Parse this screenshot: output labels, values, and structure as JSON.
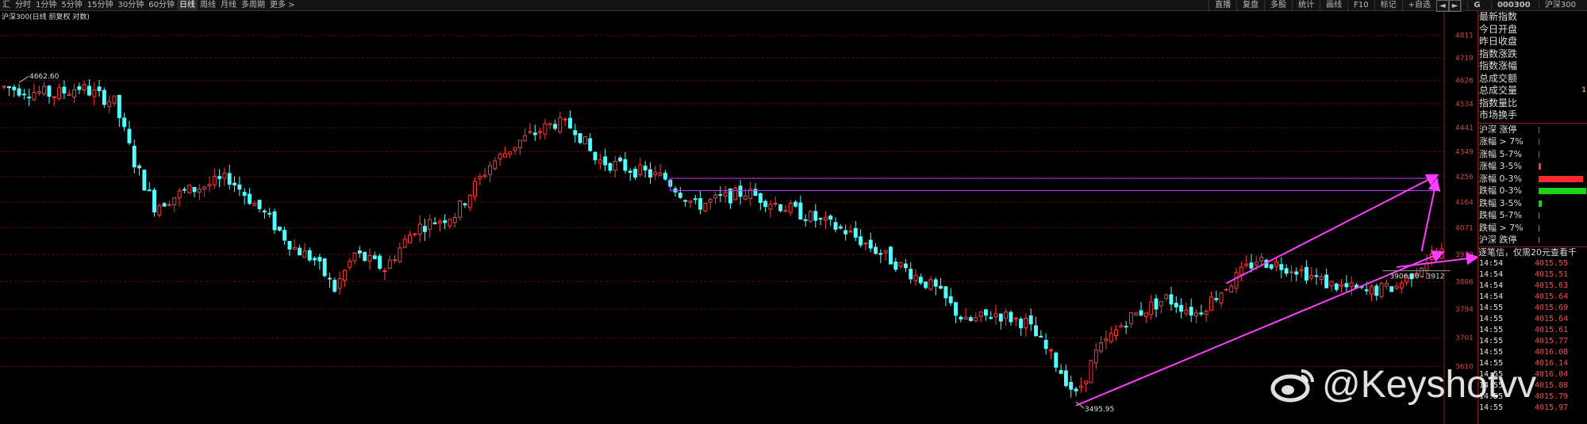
{
  "toolbar": {
    "periods": [
      "汇",
      "分时",
      "1分钟",
      "5分钟",
      "15分钟",
      "30分钟",
      "60分钟",
      "日线",
      "周线",
      "月线",
      "多周期",
      "更多 >"
    ],
    "active_period": "日线",
    "tools": [
      "直播",
      "复盘",
      "多股",
      "统计",
      "画线",
      "F10",
      "标记",
      "+自选"
    ],
    "nav_back": "◄",
    "nav_forward": "►"
  },
  "quote_header": {
    "prefix": "G",
    "code": "000300",
    "name": "沪深300"
  },
  "chart_title": "沪深300(日线 前复权 对数)",
  "chart_data": {
    "type": "candlestick",
    "scale": "log",
    "ylim": [
      3470,
      4900
    ],
    "y_ticks": [
      4811,
      4719,
      4626,
      4534,
      4441,
      4349,
      4256,
      4164,
      4071,
      3979,
      3886,
      3794,
      3701,
      3610
    ],
    "annotations": {
      "high_label": "4662.60",
      "low_label": "3495.95",
      "box_label": "3906.30 - 3912"
    },
    "colors": {
      "up": "#ff3b3b",
      "down": "#54ffff",
      "grid": "#5a1010",
      "axis_text": "#c94a4a",
      "drawing": "#ff3cff",
      "box": "#b044ff"
    },
    "anchors": [
      [
        0,
        4600
      ],
      [
        10,
        4570
      ],
      [
        15,
        4600
      ],
      [
        22,
        4540
      ],
      [
        26,
        4310
      ],
      [
        30,
        4150
      ],
      [
        36,
        4200
      ],
      [
        45,
        4250
      ],
      [
        52,
        4120
      ],
      [
        58,
        4000
      ],
      [
        62,
        3960
      ],
      [
        66,
        3860
      ],
      [
        70,
        3980
      ],
      [
        76,
        3930
      ],
      [
        82,
        4070
      ],
      [
        90,
        4120
      ],
      [
        97,
        4300
      ],
      [
        103,
        4390
      ],
      [
        110,
        4460
      ],
      [
        114,
        4440
      ],
      [
        118,
        4320
      ],
      [
        126,
        4280
      ],
      [
        132,
        4250
      ],
      [
        138,
        4150
      ],
      [
        148,
        4200
      ],
      [
        158,
        4130
      ],
      [
        168,
        4060
      ],
      [
        178,
        3950
      ],
      [
        186,
        3860
      ],
      [
        192,
        3750
      ],
      [
        198,
        3780
      ],
      [
        204,
        3750
      ],
      [
        210,
        3620
      ],
      [
        214,
        3520
      ],
      [
        218,
        3650
      ],
      [
        224,
        3760
      ],
      [
        232,
        3830
      ],
      [
        238,
        3780
      ],
      [
        244,
        3870
      ],
      [
        250,
        3960
      ],
      [
        258,
        3930
      ],
      [
        264,
        3880
      ],
      [
        272,
        3850
      ],
      [
        278,
        3870
      ],
      [
        284,
        3960
      ],
      [
        287,
        3985
      ]
    ]
  },
  "side_panel": {
    "stats": [
      {
        "label": "最新指数",
        "value": ""
      },
      {
        "label": "今日开盘",
        "value": ""
      },
      {
        "label": "昨日收盘",
        "value": ""
      },
      {
        "label": "指数涨跌",
        "value": ""
      },
      {
        "label": "指数涨幅",
        "value": ""
      },
      {
        "label": "总成交额",
        "value": ""
      },
      {
        "label": "总成交量",
        "value": "1"
      },
      {
        "label": "指数量比",
        "value": ""
      },
      {
        "label": "市场换手",
        "value": ""
      }
    ],
    "breadth": [
      {
        "label": "沪深 涨停",
        "color": "#ff3b3b",
        "fraction": 0.0
      },
      {
        "label": "涨幅 > 7%",
        "color": "#ff3b3b",
        "fraction": 0.01
      },
      {
        "label": "涨幅 5-7%",
        "color": "#ff3b3b",
        "fraction": 0.01
      },
      {
        "label": "涨幅 3-5%",
        "color": "#ff3b3b",
        "fraction": 0.05
      },
      {
        "label": "涨幅 0-3%",
        "color": "#ff2a2a",
        "fraction": 0.93
      },
      {
        "label": "跌幅 0-3%",
        "color": "#18d418",
        "fraction": 1.0
      },
      {
        "label": "跌幅 3-5%",
        "color": "#18d418",
        "fraction": 0.06
      },
      {
        "label": "跌幅 5-7%",
        "color": "#18d418",
        "fraction": 0.01
      },
      {
        "label": "跌幅 > 7%",
        "color": "#18d418",
        "fraction": 0.01
      },
      {
        "label": "沪深 跌停",
        "color": "#18d418",
        "fraction": 0.0
      }
    ],
    "notice": "逐笔信，仅需20元查看千",
    "ticks": [
      {
        "time": "14:54",
        "price": "4015.55"
      },
      {
        "time": "14:54",
        "price": "4015.51"
      },
      {
        "time": "14:54",
        "price": "4015.63"
      },
      {
        "time": "14:54",
        "price": "4015.64"
      },
      {
        "time": "14:55",
        "price": "4015.69"
      },
      {
        "time": "14:55",
        "price": "4015.64"
      },
      {
        "time": "14:55",
        "price": "4015.61"
      },
      {
        "time": "14:55",
        "price": "4015.77"
      },
      {
        "time": "14:55",
        "price": "4016.08"
      },
      {
        "time": "14:55",
        "price": "4016.14"
      },
      {
        "time": "14:55",
        "price": "4016.04"
      },
      {
        "time": "14:55",
        "price": "4015.88"
      },
      {
        "time": "14:55",
        "price": "4015.79"
      },
      {
        "time": "14:55",
        "price": "4015.97"
      }
    ]
  },
  "watermark": "@Keyshotvv"
}
